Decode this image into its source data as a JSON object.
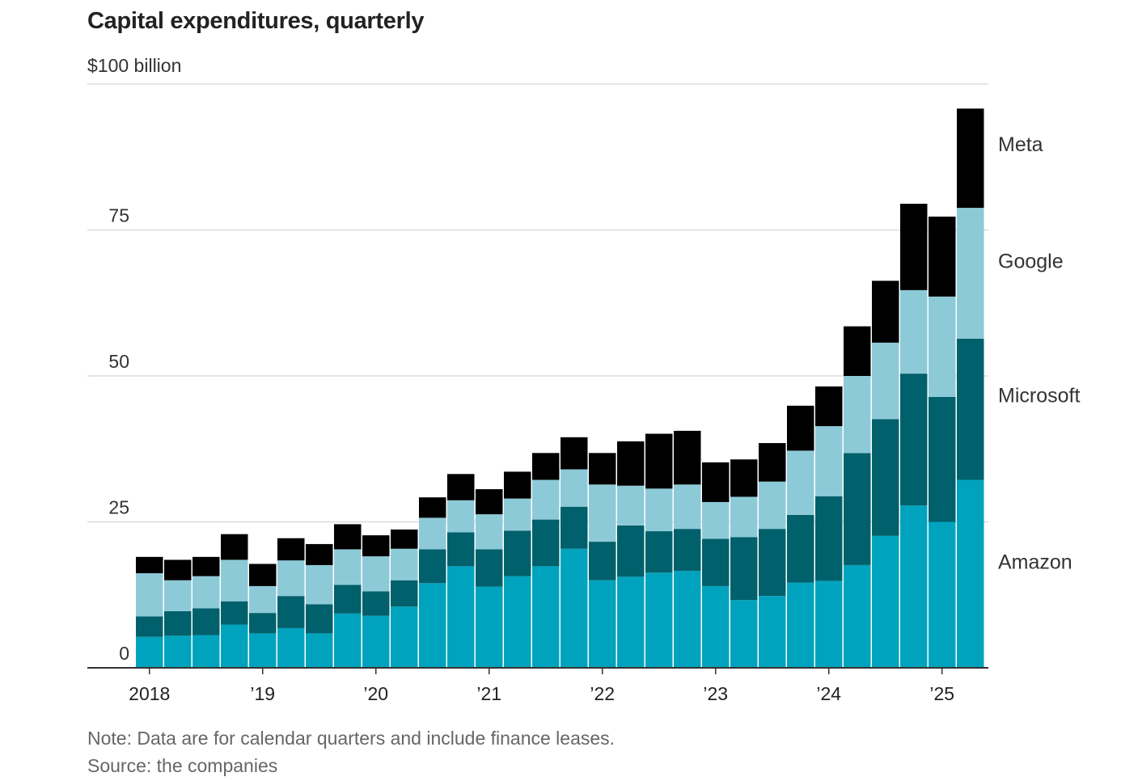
{
  "chart_data": {
    "type": "bar",
    "stacked": true,
    "title": "Capital expenditures, quarterly",
    "unit_label": "$100 billion",
    "ylim": [
      0,
      100
    ],
    "yticks": [
      0,
      25,
      50,
      75,
      100
    ],
    "ytick_labels": [
      "0",
      "25",
      "50",
      "75",
      ""
    ],
    "grid": true,
    "legend_placement": "right, labels beside stacks",
    "x_tick_labels": [
      {
        "label": "2018",
        "index": 0
      },
      {
        "label": "’19",
        "index": 4
      },
      {
        "label": "’20",
        "index": 8
      },
      {
        "label": "’21",
        "index": 12
      },
      {
        "label": "’22",
        "index": 16
      },
      {
        "label": "’23",
        "index": 20
      },
      {
        "label": "’24",
        "index": 24
      },
      {
        "label": "’25",
        "index": 28
      }
    ],
    "categories": [
      "2018 Q1",
      "2018 Q2",
      "2018 Q3",
      "2018 Q4",
      "2019 Q1",
      "2019 Q2",
      "2019 Q3",
      "2019 Q4",
      "2020 Q1",
      "2020 Q2",
      "2020 Q3",
      "2020 Q4",
      "2021 Q1",
      "2021 Q2",
      "2021 Q3",
      "2021 Q4",
      "2022 Q1",
      "2022 Q2",
      "2022 Q3",
      "2022 Q4",
      "2023 Q1",
      "2023 Q2",
      "2023 Q3",
      "2023 Q4",
      "2024 Q1",
      "2024 Q2",
      "2024 Q3",
      "2024 Q4",
      "2025 Q1",
      "2025 Q2"
    ],
    "series": [
      {
        "name": "Amazon",
        "color": "#00a3bd",
        "values": [
          5.3,
          5.5,
          5.6,
          7.4,
          5.9,
          6.8,
          5.9,
          9.3,
          8.9,
          10.5,
          14.5,
          17.4,
          13.9,
          15.7,
          17.4,
          20.4,
          15.0,
          15.6,
          16.3,
          16.6,
          14.0,
          11.6,
          12.3,
          14.6,
          14.9,
          17.6,
          22.6,
          27.8,
          25.0,
          32.2
        ],
        "label_y": 17
      },
      {
        "name": "Microsoft",
        "color": "#00606b",
        "values": [
          3.5,
          4.2,
          4.6,
          4.0,
          3.5,
          5.5,
          5.0,
          4.9,
          4.2,
          4.5,
          5.8,
          5.8,
          6.4,
          7.8,
          8.0,
          7.2,
          6.6,
          8.8,
          7.1,
          7.2,
          8.1,
          10.8,
          11.5,
          11.6,
          14.5,
          19.2,
          20.0,
          22.6,
          21.4,
          24.2
        ],
        "label_y": 45.5
      },
      {
        "name": "Google",
        "color": "#8dcad8",
        "values": [
          7.4,
          5.3,
          5.5,
          7.1,
          4.6,
          6.1,
          6.7,
          6.1,
          6.0,
          5.4,
          5.4,
          5.5,
          6.0,
          5.5,
          6.8,
          6.4,
          9.8,
          6.8,
          7.3,
          7.6,
          6.3,
          6.9,
          8.1,
          11.0,
          12.0,
          13.2,
          13.1,
          14.3,
          17.2,
          22.4
        ],
        "label_y": 68.5
      },
      {
        "name": "Meta",
        "color": "#000000",
        "values": [
          2.8,
          3.5,
          3.3,
          4.4,
          3.8,
          3.8,
          3.6,
          4.3,
          3.6,
          3.3,
          3.5,
          4.5,
          4.3,
          4.6,
          4.6,
          5.5,
          5.4,
          7.6,
          9.4,
          9.2,
          6.8,
          6.4,
          6.6,
          7.7,
          6.8,
          8.5,
          10.6,
          14.8,
          13.7,
          17.0
        ],
        "label_y": 88.5
      }
    ],
    "note": "Note: Data are for calendar quarters and include finance leases.",
    "source": "Source: the companies"
  }
}
